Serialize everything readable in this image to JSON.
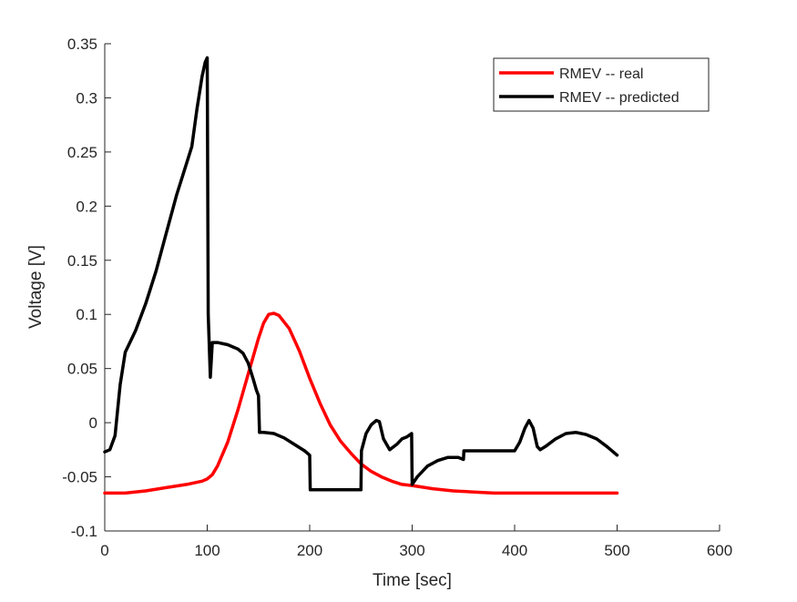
{
  "chart_data": {
    "type": "line",
    "title": "",
    "xlabel": "Time [sec]",
    "ylabel": "Voltage [V]",
    "xlim": [
      0,
      600
    ],
    "ylim": [
      -0.1,
      0.35
    ],
    "xticks": [
      0,
      100,
      200,
      300,
      400,
      500,
      600
    ],
    "xtick_labels": [
      "0",
      "100",
      "200",
      "300",
      "400",
      "500",
      "600"
    ],
    "yticks": [
      -0.1,
      -0.05,
      0,
      0.05,
      0.1,
      0.15,
      0.2,
      0.25,
      0.3,
      0.35
    ],
    "ytick_labels": [
      "-0.1",
      "-0.05",
      "0",
      "0.05",
      "0.1",
      "0.15",
      "0.2",
      "0.25",
      "0.3",
      "0.35"
    ],
    "grid": false,
    "legend_position": "top-right",
    "series": [
      {
        "name": "RMEV -- real",
        "color": "#ff0000",
        "x": [
          0,
          20,
          40,
          60,
          80,
          95,
          100,
          105,
          110,
          120,
          130,
          140,
          150,
          155,
          160,
          165,
          170,
          180,
          190,
          200,
          210,
          220,
          230,
          240,
          250,
          260,
          270,
          280,
          290,
          300,
          320,
          340,
          360,
          380,
          400,
          420,
          450,
          500
        ],
        "y": [
          -0.065,
          -0.065,
          -0.063,
          -0.06,
          -0.057,
          -0.054,
          -0.052,
          -0.048,
          -0.04,
          -0.018,
          0.012,
          0.045,
          0.078,
          0.092,
          0.1,
          0.101,
          0.099,
          0.087,
          0.066,
          0.041,
          0.018,
          -0.002,
          -0.017,
          -0.028,
          -0.038,
          -0.045,
          -0.05,
          -0.054,
          -0.057,
          -0.058,
          -0.061,
          -0.063,
          -0.064,
          -0.065,
          -0.065,
          -0.065,
          -0.065,
          -0.065
        ]
      },
      {
        "name": "RMEV -- predicted",
        "color": "#000000",
        "x": [
          0,
          5,
          10,
          15,
          20,
          30,
          40,
          50,
          60,
          70,
          80,
          85,
          90,
          95,
          98,
          100,
          101,
          103,
          105,
          110,
          120,
          130,
          135,
          140,
          145,
          148,
          150,
          151,
          155,
          165,
          175,
          185,
          195,
          200,
          200.5,
          220,
          240,
          250,
          250.5,
          255,
          260,
          265,
          268,
          272,
          278,
          285,
          290,
          295,
          299.5,
          300,
          305,
          315,
          325,
          335,
          345,
          350,
          350.5,
          360,
          380,
          400,
          405,
          410,
          414,
          418,
          422,
          425,
          430,
          440,
          450,
          460,
          470,
          480,
          490,
          500
        ],
        "y": [
          -0.027,
          -0.025,
          -0.012,
          0.035,
          0.065,
          0.085,
          0.11,
          0.14,
          0.175,
          0.21,
          0.24,
          0.255,
          0.29,
          0.32,
          0.333,
          0.337,
          0.1,
          0.042,
          0.074,
          0.074,
          0.072,
          0.068,
          0.064,
          0.055,
          0.04,
          0.03,
          0.025,
          -0.009,
          -0.009,
          -0.01,
          -0.014,
          -0.02,
          -0.026,
          -0.03,
          -0.062,
          -0.062,
          -0.062,
          -0.062,
          -0.026,
          -0.01,
          -0.002,
          0.002,
          0.001,
          -0.015,
          -0.025,
          -0.02,
          -0.015,
          -0.013,
          -0.01,
          -0.057,
          -0.05,
          -0.04,
          -0.035,
          -0.032,
          -0.032,
          -0.034,
          -0.026,
          -0.026,
          -0.026,
          -0.026,
          -0.018,
          -0.005,
          0.002,
          -0.005,
          -0.022,
          -0.025,
          -0.022,
          -0.015,
          -0.01,
          -0.009,
          -0.011,
          -0.015,
          -0.022,
          -0.03
        ]
      }
    ]
  }
}
